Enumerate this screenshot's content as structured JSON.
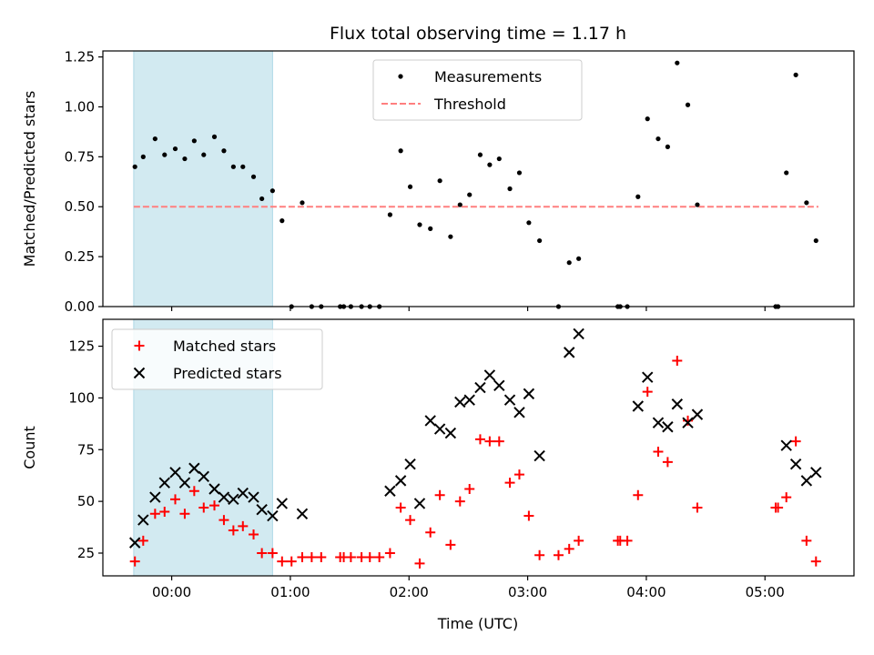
{
  "chart_data": {
    "title": "Flux total observing time = 1.17 h",
    "xlabel": "Time (UTC)",
    "x_unit": "hours UTC",
    "x_ticks": [
      {
        "value": 0,
        "label": "00:00"
      },
      {
        "value": 1,
        "label": "01:00"
      },
      {
        "value": 2,
        "label": "02:00"
      },
      {
        "value": 3,
        "label": "03:00"
      },
      {
        "value": 4,
        "label": "04:00"
      },
      {
        "value": 5,
        "label": "05:00"
      }
    ],
    "xlim": [
      -0.58,
      5.75
    ],
    "highlight_span": {
      "x0": -0.32,
      "x1": 0.85,
      "color": "#add8e6"
    },
    "panels": [
      {
        "type": "scatter",
        "ylabel": "Matched/Predicted stars",
        "ylim": [
          0,
          1.28
        ],
        "y_ticks": [
          {
            "value": 0,
            "label": "0.00"
          },
          {
            "value": 0.25,
            "label": "0.25"
          },
          {
            "value": 0.5,
            "label": "0.50"
          },
          {
            "value": 0.75,
            "label": "0.75"
          },
          {
            "value": 1.0,
            "label": "1.00"
          },
          {
            "value": 1.25,
            "label": "1.25"
          }
        ],
        "legend": {
          "position": "upper center"
        },
        "threshold": {
          "name": "Threshold",
          "value": 0.5,
          "x_range": [
            -0.32,
            5.45
          ],
          "color": "#ff7f7f"
        },
        "series": [
          {
            "name": "Measurements",
            "marker": "point",
            "color": "#000000",
            "points": [
              [
                -0.31,
                0.7
              ],
              [
                -0.24,
                0.75
              ],
              [
                -0.14,
                0.84
              ],
              [
                -0.06,
                0.76
              ],
              [
                0.03,
                0.79
              ],
              [
                0.11,
                0.74
              ],
              [
                0.19,
                0.83
              ],
              [
                0.27,
                0.76
              ],
              [
                0.36,
                0.85
              ],
              [
                0.44,
                0.78
              ],
              [
                0.52,
                0.7
              ],
              [
                0.6,
                0.7
              ],
              [
                0.69,
                0.65
              ],
              [
                0.76,
                0.54
              ],
              [
                0.85,
                0.58
              ],
              [
                0.93,
                0.43
              ],
              [
                1.01,
                0.0
              ],
              [
                1.1,
                0.52
              ],
              [
                1.18,
                0.0
              ],
              [
                1.26,
                0.0
              ],
              [
                1.42,
                0.0
              ],
              [
                1.45,
                0.0
              ],
              [
                1.51,
                0.0
              ],
              [
                1.6,
                0.0
              ],
              [
                1.67,
                0.0
              ],
              [
                1.75,
                0.0
              ],
              [
                1.84,
                0.46
              ],
              [
                1.93,
                0.78
              ],
              [
                2.01,
                0.6
              ],
              [
                2.09,
                0.41
              ],
              [
                2.18,
                0.39
              ],
              [
                2.26,
                0.63
              ],
              [
                2.35,
                0.35
              ],
              [
                2.43,
                0.51
              ],
              [
                2.51,
                0.56
              ],
              [
                2.6,
                0.76
              ],
              [
                2.68,
                0.71
              ],
              [
                2.76,
                0.74
              ],
              [
                2.85,
                0.59
              ],
              [
                2.93,
                0.67
              ],
              [
                3.01,
                0.42
              ],
              [
                3.1,
                0.33
              ],
              [
                3.26,
                0.0
              ],
              [
                3.35,
                0.22
              ],
              [
                3.43,
                0.24
              ],
              [
                3.76,
                0.0
              ],
              [
                3.78,
                0.0
              ],
              [
                3.84,
                0.0
              ],
              [
                3.93,
                0.55
              ],
              [
                4.01,
                0.94
              ],
              [
                4.1,
                0.84
              ],
              [
                4.18,
                0.8
              ],
              [
                4.26,
                1.22
              ],
              [
                4.35,
                1.01
              ],
              [
                4.43,
                0.51
              ],
              [
                5.09,
                0.0
              ],
              [
                5.11,
                0.0
              ],
              [
                5.18,
                0.67
              ],
              [
                5.26,
                1.16
              ],
              [
                5.35,
                0.52
              ],
              [
                5.43,
                0.33
              ]
            ]
          }
        ]
      },
      {
        "type": "scatter",
        "ylabel": "Count",
        "ylim": [
          14,
          138
        ],
        "y_ticks": [
          {
            "value": 25,
            "label": "25"
          },
          {
            "value": 50,
            "label": "50"
          },
          {
            "value": 75,
            "label": "75"
          },
          {
            "value": 100,
            "label": "100"
          },
          {
            "value": 125,
            "label": "125"
          }
        ],
        "legend": {
          "position": "upper left"
        },
        "series": [
          {
            "name": "Matched stars",
            "marker": "plus",
            "color": "#ff0000",
            "points": [
              [
                -0.31,
                21
              ],
              [
                -0.24,
                31
              ],
              [
                -0.14,
                44
              ],
              [
                -0.06,
                45
              ],
              [
                0.03,
                51
              ],
              [
                0.11,
                44
              ],
              [
                0.19,
                55
              ],
              [
                0.27,
                47
              ],
              [
                0.36,
                48
              ],
              [
                0.44,
                41
              ],
              [
                0.52,
                36
              ],
              [
                0.6,
                38
              ],
              [
                0.69,
                34
              ],
              [
                0.76,
                25
              ],
              [
                0.85,
                25
              ],
              [
                0.93,
                21
              ],
              [
                1.01,
                21
              ],
              [
                1.1,
                23
              ],
              [
                1.18,
                23
              ],
              [
                1.26,
                23
              ],
              [
                1.42,
                23
              ],
              [
                1.45,
                23
              ],
              [
                1.51,
                23
              ],
              [
                1.6,
                23
              ],
              [
                1.67,
                23
              ],
              [
                1.75,
                23
              ],
              [
                1.84,
                25
              ],
              [
                1.93,
                47
              ],
              [
                2.01,
                41
              ],
              [
                2.09,
                20
              ],
              [
                2.18,
                35
              ],
              [
                2.26,
                53
              ],
              [
                2.35,
                29
              ],
              [
                2.43,
                50
              ],
              [
                2.51,
                56
              ],
              [
                2.6,
                80
              ],
              [
                2.68,
                79
              ],
              [
                2.76,
                79
              ],
              [
                2.85,
                59
              ],
              [
                2.93,
                63
              ],
              [
                3.01,
                43
              ],
              [
                3.1,
                24
              ],
              [
                3.26,
                24
              ],
              [
                3.35,
                27
              ],
              [
                3.43,
                31
              ],
              [
                3.76,
                31
              ],
              [
                3.78,
                31
              ],
              [
                3.84,
                31
              ],
              [
                3.93,
                53
              ],
              [
                4.01,
                103
              ],
              [
                4.1,
                74
              ],
              [
                4.18,
                69
              ],
              [
                4.26,
                118
              ],
              [
                4.35,
                89
              ],
              [
                4.43,
                47
              ],
              [
                5.09,
                47
              ],
              [
                5.11,
                47
              ],
              [
                5.18,
                52
              ],
              [
                5.26,
                79
              ],
              [
                5.35,
                31
              ],
              [
                5.43,
                21
              ]
            ]
          },
          {
            "name": "Predicted stars",
            "marker": "x",
            "color": "#000000",
            "points": [
              [
                -0.31,
                30
              ],
              [
                -0.24,
                41
              ],
              [
                -0.14,
                52
              ],
              [
                -0.06,
                59
              ],
              [
                0.03,
                64
              ],
              [
                0.11,
                59
              ],
              [
                0.19,
                66
              ],
              [
                0.27,
                62
              ],
              [
                0.36,
                56
              ],
              [
                0.44,
                52
              ],
              [
                0.52,
                51
              ],
              [
                0.6,
                54
              ],
              [
                0.69,
                52
              ],
              [
                0.76,
                46
              ],
              [
                0.85,
                43
              ],
              [
                0.93,
                49
              ],
              [
                1.1,
                44
              ],
              [
                1.84,
                55
              ],
              [
                1.93,
                60
              ],
              [
                2.01,
                68
              ],
              [
                2.09,
                49
              ],
              [
                2.18,
                89
              ],
              [
                2.26,
                85
              ],
              [
                2.35,
                83
              ],
              [
                2.43,
                98
              ],
              [
                2.51,
                99
              ],
              [
                2.6,
                105
              ],
              [
                2.68,
                111
              ],
              [
                2.76,
                106
              ],
              [
                2.85,
                99
              ],
              [
                2.93,
                93
              ],
              [
                3.01,
                102
              ],
              [
                3.1,
                72
              ],
              [
                3.35,
                122
              ],
              [
                3.43,
                131
              ],
              [
                3.93,
                96
              ],
              [
                4.01,
                110
              ],
              [
                4.1,
                88
              ],
              [
                4.18,
                86
              ],
              [
                4.26,
                97
              ],
              [
                4.35,
                88
              ],
              [
                4.43,
                92
              ],
              [
                5.18,
                77
              ],
              [
                5.26,
                68
              ],
              [
                5.35,
                60
              ],
              [
                5.43,
                64
              ]
            ]
          }
        ]
      }
    ]
  }
}
